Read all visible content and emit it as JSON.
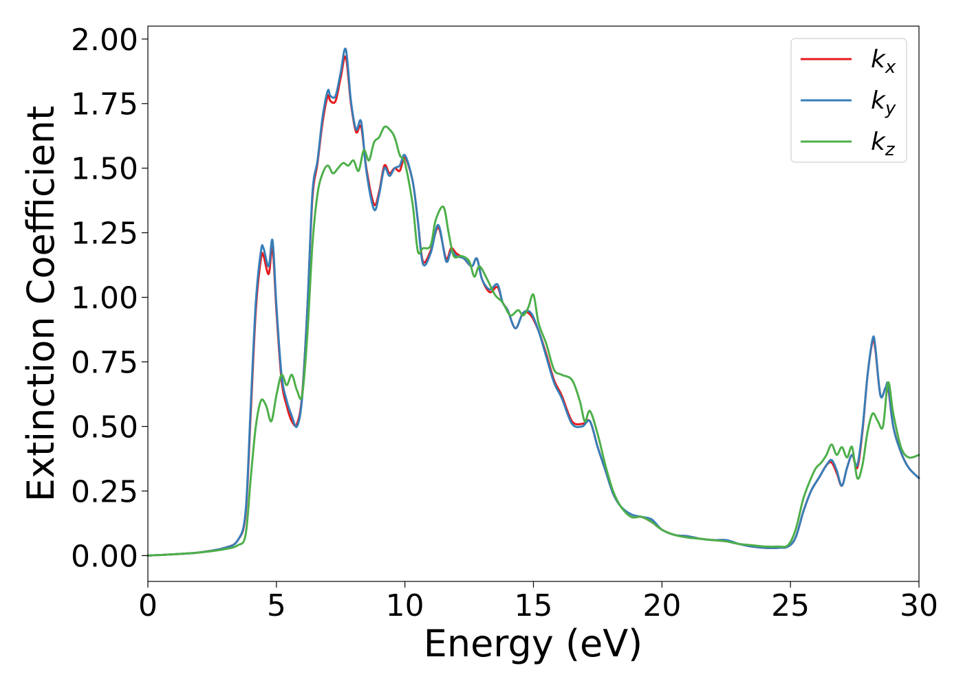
{
  "chart_data": {
    "type": "line",
    "title": "",
    "xlabel": "Energy (eV)",
    "ylabel": "Extinction Coefficient",
    "xlim": [
      0,
      30
    ],
    "ylim": [
      -0.1,
      2.05
    ],
    "xticks": [
      0,
      5,
      10,
      15,
      20,
      25,
      30
    ],
    "xtick_labels": [
      "0",
      "5",
      "10",
      "15",
      "20",
      "25",
      "30"
    ],
    "yticks": [
      0,
      0.25,
      0.5,
      0.75,
      1.0,
      1.25,
      1.5,
      1.75,
      2.0
    ],
    "ytick_labels": [
      "0.00",
      "0.25",
      "0.50",
      "0.75",
      "1.00",
      "1.25",
      "1.50",
      "1.75",
      "2.00"
    ],
    "grid": false,
    "legend_position": "top-right",
    "series": [
      {
        "name": "k_x",
        "label_main": "k",
        "label_sub": "x",
        "color": "#e41a1c",
        "x": [
          0,
          1,
          2,
          3,
          3.5,
          3.8,
          4.0,
          4.2,
          4.4,
          4.5,
          4.7,
          4.85,
          5.0,
          5.2,
          5.4,
          5.6,
          5.8,
          6.0,
          6.2,
          6.4,
          6.6,
          6.8,
          7.0,
          7.1,
          7.3,
          7.5,
          7.7,
          7.9,
          8.1,
          8.3,
          8.5,
          8.8,
          9.0,
          9.2,
          9.4,
          9.6,
          9.8,
          10.0,
          10.3,
          10.5,
          10.7,
          11.0,
          11.3,
          11.6,
          11.8,
          12.0,
          12.3,
          12.6,
          12.8,
          13.0,
          13.3,
          13.6,
          13.8,
          14.0,
          14.3,
          14.6,
          14.9,
          15.2,
          15.5,
          15.8,
          16.1,
          16.5,
          16.9,
          17.2,
          17.5,
          17.8,
          18.1,
          18.4,
          18.8,
          19.2,
          19.6,
          20.0,
          20.5,
          21.0,
          21.5,
          22.0,
          22.5,
          23.0,
          23.5,
          24.0,
          24.5,
          24.9,
          25.2,
          25.5,
          25.8,
          26.1,
          26.4,
          26.6,
          26.8,
          27.0,
          27.2,
          27.4,
          27.6,
          27.8,
          28.0,
          28.2,
          28.3,
          28.5,
          28.7,
          28.8,
          29.0,
          29.3,
          29.6,
          30.0
        ],
        "values": [
          0.0,
          0.005,
          0.012,
          0.03,
          0.06,
          0.16,
          0.55,
          0.95,
          1.15,
          1.16,
          1.09,
          1.19,
          0.95,
          0.68,
          0.58,
          0.52,
          0.51,
          0.62,
          0.95,
          1.38,
          1.52,
          1.68,
          1.78,
          1.76,
          1.76,
          1.85,
          1.93,
          1.75,
          1.64,
          1.66,
          1.5,
          1.36,
          1.41,
          1.51,
          1.48,
          1.5,
          1.49,
          1.54,
          1.45,
          1.3,
          1.14,
          1.18,
          1.27,
          1.15,
          1.19,
          1.17,
          1.15,
          1.12,
          1.15,
          1.07,
          1.02,
          1.04,
          0.98,
          0.95,
          0.88,
          0.94,
          0.93,
          0.87,
          0.78,
          0.68,
          0.62,
          0.52,
          0.51,
          0.52,
          0.42,
          0.33,
          0.24,
          0.19,
          0.15,
          0.15,
          0.13,
          0.1,
          0.08,
          0.075,
          0.065,
          0.06,
          0.055,
          0.045,
          0.035,
          0.03,
          0.03,
          0.035,
          0.07,
          0.17,
          0.25,
          0.3,
          0.35,
          0.36,
          0.32,
          0.27,
          0.34,
          0.39,
          0.34,
          0.48,
          0.7,
          0.83,
          0.8,
          0.62,
          0.65,
          0.65,
          0.5,
          0.4,
          0.34,
          0.3
        ]
      },
      {
        "name": "k_y",
        "label_main": "k",
        "label_sub": "y",
        "color": "#377eb8",
        "x": [
          0,
          1,
          2,
          3,
          3.5,
          3.8,
          4.0,
          4.2,
          4.4,
          4.5,
          4.7,
          4.85,
          5.0,
          5.2,
          5.4,
          5.6,
          5.8,
          6.0,
          6.2,
          6.4,
          6.6,
          6.8,
          7.0,
          7.1,
          7.3,
          7.5,
          7.7,
          7.9,
          8.1,
          8.3,
          8.5,
          8.8,
          9.0,
          9.2,
          9.4,
          9.6,
          9.8,
          10.0,
          10.3,
          10.5,
          10.7,
          11.0,
          11.3,
          11.6,
          11.8,
          12.0,
          12.3,
          12.6,
          12.8,
          13.0,
          13.3,
          13.6,
          13.8,
          14.0,
          14.3,
          14.6,
          14.9,
          15.2,
          15.5,
          15.8,
          16.1,
          16.5,
          16.9,
          17.2,
          17.5,
          17.8,
          18.1,
          18.4,
          18.8,
          19.2,
          19.6,
          20.0,
          20.5,
          21.0,
          21.5,
          22.0,
          22.5,
          23.0,
          23.5,
          24.0,
          24.5,
          24.9,
          25.2,
          25.5,
          25.8,
          26.1,
          26.4,
          26.6,
          26.8,
          27.0,
          27.2,
          27.4,
          27.6,
          27.8,
          28.0,
          28.2,
          28.3,
          28.5,
          28.7,
          28.8,
          29.0,
          29.3,
          29.6,
          30.0
        ],
        "values": [
          0.0,
          0.005,
          0.012,
          0.03,
          0.06,
          0.17,
          0.58,
          0.98,
          1.18,
          1.19,
          1.12,
          1.22,
          0.97,
          0.7,
          0.6,
          0.54,
          0.5,
          0.61,
          0.95,
          1.4,
          1.53,
          1.7,
          1.8,
          1.78,
          1.78,
          1.87,
          1.96,
          1.76,
          1.65,
          1.68,
          1.49,
          1.34,
          1.4,
          1.5,
          1.47,
          1.5,
          1.51,
          1.55,
          1.45,
          1.3,
          1.13,
          1.17,
          1.28,
          1.14,
          1.18,
          1.16,
          1.15,
          1.12,
          1.15,
          1.07,
          1.03,
          1.05,
          0.98,
          0.95,
          0.88,
          0.94,
          0.94,
          0.87,
          0.77,
          0.67,
          0.61,
          0.51,
          0.5,
          0.52,
          0.42,
          0.33,
          0.24,
          0.19,
          0.16,
          0.15,
          0.14,
          0.1,
          0.08,
          0.075,
          0.065,
          0.06,
          0.06,
          0.045,
          0.035,
          0.03,
          0.03,
          0.035,
          0.07,
          0.17,
          0.25,
          0.3,
          0.35,
          0.37,
          0.33,
          0.27,
          0.34,
          0.39,
          0.35,
          0.49,
          0.7,
          0.84,
          0.81,
          0.62,
          0.65,
          0.66,
          0.5,
          0.4,
          0.34,
          0.3
        ]
      },
      {
        "name": "k_z",
        "label_main": "k",
        "label_sub": "z",
        "color": "#4daf4a",
        "x": [
          0,
          1,
          2,
          3,
          3.5,
          3.8,
          4.0,
          4.2,
          4.4,
          4.6,
          4.8,
          5.0,
          5.2,
          5.4,
          5.6,
          5.8,
          6.0,
          6.2,
          6.4,
          6.6,
          6.8,
          7.0,
          7.2,
          7.4,
          7.6,
          7.8,
          8.0,
          8.2,
          8.4,
          8.6,
          8.8,
          9.0,
          9.2,
          9.4,
          9.6,
          9.8,
          10.0,
          10.3,
          10.5,
          10.7,
          11.0,
          11.2,
          11.5,
          11.7,
          11.9,
          12.2,
          12.5,
          12.7,
          12.9,
          13.2,
          13.5,
          13.8,
          14.1,
          14.4,
          14.6,
          14.8,
          15.0,
          15.2,
          15.5,
          15.8,
          16.1,
          16.5,
          16.8,
          17.0,
          17.2,
          17.5,
          17.8,
          18.1,
          18.4,
          18.8,
          19.2,
          19.6,
          20.0,
          20.5,
          21.0,
          21.5,
          22.0,
          22.5,
          23.0,
          23.5,
          24.0,
          24.5,
          24.9,
          25.2,
          25.5,
          25.8,
          26.0,
          26.2,
          26.4,
          26.6,
          26.8,
          27.0,
          27.2,
          27.4,
          27.6,
          27.8,
          28.0,
          28.2,
          28.4,
          28.6,
          28.8,
          29.0,
          29.3,
          29.6,
          30.0
        ],
        "values": [
          0.0,
          0.005,
          0.012,
          0.025,
          0.04,
          0.08,
          0.3,
          0.5,
          0.6,
          0.58,
          0.52,
          0.62,
          0.7,
          0.66,
          0.7,
          0.64,
          0.62,
          0.85,
          1.2,
          1.4,
          1.48,
          1.51,
          1.48,
          1.5,
          1.52,
          1.51,
          1.53,
          1.49,
          1.57,
          1.53,
          1.6,
          1.62,
          1.66,
          1.65,
          1.62,
          1.55,
          1.52,
          1.36,
          1.18,
          1.19,
          1.2,
          1.3,
          1.35,
          1.25,
          1.16,
          1.16,
          1.14,
          1.08,
          1.12,
          1.07,
          1.01,
          0.98,
          0.93,
          0.95,
          0.93,
          0.96,
          1.01,
          0.9,
          0.82,
          0.72,
          0.7,
          0.68,
          0.6,
          0.52,
          0.56,
          0.47,
          0.35,
          0.25,
          0.19,
          0.15,
          0.15,
          0.13,
          0.1,
          0.08,
          0.07,
          0.065,
          0.06,
          0.055,
          0.045,
          0.04,
          0.035,
          0.035,
          0.04,
          0.1,
          0.22,
          0.3,
          0.34,
          0.36,
          0.39,
          0.43,
          0.39,
          0.42,
          0.38,
          0.42,
          0.3,
          0.35,
          0.48,
          0.55,
          0.52,
          0.5,
          0.67,
          0.55,
          0.42,
          0.38,
          0.39
        ]
      }
    ]
  }
}
